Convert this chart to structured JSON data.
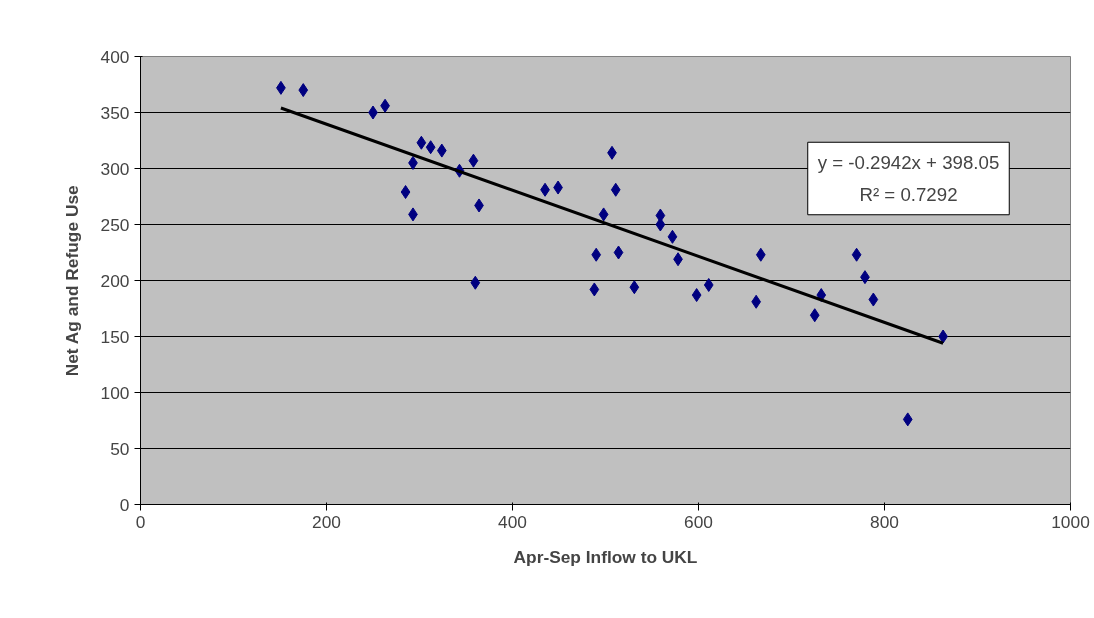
{
  "chart_data": {
    "type": "scatter",
    "xlabel": "Apr-Sep Inflow to UKL",
    "ylabel": "Net Ag and Refuge Use",
    "xlim": [
      0,
      1000
    ],
    "xticks": [
      0,
      200,
      400,
      600,
      800,
      1000
    ],
    "ylim": [
      0,
      400
    ],
    "yticks": [
      0,
      50,
      100,
      150,
      200,
      250,
      300,
      350,
      400
    ],
    "grid": "y",
    "marker": "diamond",
    "series": [
      {
        "color": "#000080",
        "x": [
          151,
          175,
          250,
          263,
          302,
          312,
          324,
          293,
          343,
          358,
          285,
          293,
          364,
          360,
          435,
          449,
          507,
          511,
          498,
          490,
          514,
          488,
          531,
          559,
          559,
          572,
          578,
          598,
          611,
          667,
          662,
          725,
          732,
          770,
          779,
          788,
          863,
          825
        ],
        "values": [
          372,
          370,
          350,
          356,
          323,
          319,
          316,
          305,
          298,
          307,
          279,
          259,
          267,
          198,
          281,
          283,
          314,
          281,
          259,
          223,
          225,
          192,
          194,
          258,
          250,
          239,
          219,
          187,
          196,
          223,
          181,
          169,
          187,
          223,
          203,
          183,
          150,
          76
        ]
      },
      {
        "type": "line",
        "marker": "none",
        "color": "#000000",
        "x": [
          151,
          863
        ],
        "values": [
          354,
          144
        ]
      }
    ],
    "annotations": [
      "y = -0.2942x + 398.05",
      "R² = 0.7292"
    ]
  }
}
